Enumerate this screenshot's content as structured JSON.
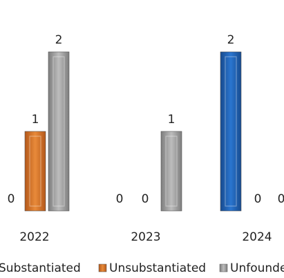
{
  "chart_data": {
    "type": "bar",
    "categories": [
      "2022",
      "2023",
      "2024"
    ],
    "series": [
      {
        "name": "Substantiated",
        "values": [
          0,
          0,
          2
        ],
        "color": "#1f5fb0"
      },
      {
        "name": "Unsubstantiated",
        "values": [
          1,
          0,
          0
        ],
        "color": "#d2691e"
      },
      {
        "name": "Unfounded",
        "values": [
          2,
          1,
          0
        ],
        "color": "#9e9e9e"
      }
    ],
    "value_labels": [
      [
        "0",
        "0",
        "2"
      ],
      [
        "1",
        "0",
        "0"
      ],
      [
        "2",
        "1",
        "0"
      ]
    ],
    "legend": [
      "Substantiated",
      "Unsubstantiated",
      "Unfounded"
    ],
    "legend_position": "bottom",
    "ylim": [
      0,
      2
    ],
    "grid": false,
    "title": "",
    "xlabel": "",
    "ylabel": ""
  }
}
